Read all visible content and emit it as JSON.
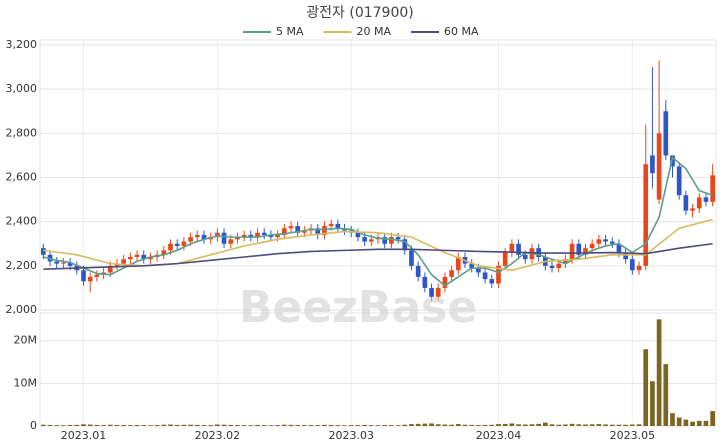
{
  "chart_data": [
    {
      "type": "candlestick",
      "title": "광전자 (017900)",
      "watermark": "BeezBase",
      "categories": [
        null,
        null,
        null,
        null,
        null,
        null,
        "2023.01",
        null,
        null,
        null,
        null,
        null,
        null,
        null,
        null,
        null,
        null,
        null,
        null,
        null,
        null,
        null,
        null,
        null,
        null,
        null,
        "2023.02",
        null,
        null,
        null,
        null,
        null,
        null,
        null,
        null,
        null,
        null,
        null,
        null,
        null,
        null,
        null,
        null,
        null,
        null,
        null,
        "2023.03",
        null,
        null,
        null,
        null,
        null,
        null,
        null,
        null,
        null,
        null,
        null,
        null,
        null,
        null,
        null,
        null,
        null,
        null,
        null,
        null,
        null,
        "2023.04",
        null,
        null,
        null,
        null,
        null,
        null,
        null,
        null,
        null,
        null,
        null,
        null,
        null,
        null,
        null,
        null,
        null,
        null,
        null,
        "2023.05",
        null,
        null,
        null,
        null,
        null,
        null,
        null,
        null,
        null,
        null,
        null,
        null
      ],
      "open": [
        2280,
        2250,
        2220,
        2210,
        2215,
        2200,
        2180,
        2130,
        2150,
        2160,
        2170,
        2200,
        2210,
        2230,
        2240,
        2250,
        2230,
        2240,
        2250,
        2270,
        2300,
        2290,
        2310,
        2330,
        2340,
        2320,
        2330,
        2350,
        2300,
        2320,
        2330,
        2340,
        2330,
        2350,
        2340,
        2330,
        2340,
        2370,
        2380,
        2350,
        2360,
        2370,
        2340,
        2380,
        2390,
        2370,
        2360,
        2350,
        2330,
        2310,
        2320,
        2330,
        2300,
        2330,
        2320,
        2270,
        2200,
        2150,
        2100,
        2060,
        2100,
        2150,
        2180,
        2240,
        2210,
        2190,
        2170,
        2140,
        2120,
        2200,
        2260,
        2300,
        2250,
        2230,
        2280,
        2240,
        2200,
        2190,
        2210,
        2230,
        2300,
        2250,
        2280,
        2300,
        2320,
        2310,
        2300,
        2260,
        2230,
        2180,
        2200,
        2700,
        2500,
        2900,
        2700,
        2650,
        2520,
        2450,
        2460,
        2510,
        2490
      ],
      "high": [
        2300,
        2270,
        2240,
        2235,
        2235,
        2220,
        2200,
        2170,
        2180,
        2190,
        2220,
        2230,
        2250,
        2260,
        2270,
        2270,
        2260,
        2270,
        2290,
        2320,
        2320,
        2330,
        2350,
        2360,
        2360,
        2350,
        2370,
        2370,
        2340,
        2350,
        2360,
        2360,
        2370,
        2370,
        2360,
        2360,
        2390,
        2400,
        2400,
        2380,
        2390,
        2390,
        2400,
        2410,
        2410,
        2390,
        2380,
        2370,
        2350,
        2340,
        2350,
        2350,
        2350,
        2350,
        2340,
        2290,
        2220,
        2170,
        2120,
        2120,
        2170,
        2200,
        2260,
        2260,
        2230,
        2210,
        2190,
        2160,
        2220,
        2280,
        2320,
        2320,
        2270,
        2300,
        2300,
        2260,
        2220,
        2230,
        2250,
        2320,
        2320,
        2300,
        2320,
        2340,
        2340,
        2330,
        2320,
        2280,
        2250,
        2220,
        2840,
        3100,
        3130,
        2950,
        2700,
        2670,
        2540,
        2480,
        2530,
        2530,
        2660
      ],
      "low": [
        2230,
        2200,
        2190,
        2190,
        2180,
        2160,
        2110,
        2080,
        2130,
        2140,
        2150,
        2180,
        2190,
        2210,
        2220,
        2210,
        2210,
        2220,
        2230,
        2250,
        2270,
        2270,
        2290,
        2310,
        2300,
        2300,
        2310,
        2280,
        2280,
        2300,
        2310,
        2310,
        2310,
        2320,
        2310,
        2310,
        2320,
        2350,
        2330,
        2330,
        2340,
        2320,
        2320,
        2360,
        2350,
        2340,
        2330,
        2310,
        2290,
        2290,
        2300,
        2280,
        2280,
        2300,
        2250,
        2180,
        2130,
        2080,
        2040,
        2040,
        2080,
        2130,
        2160,
        2190,
        2170,
        2150,
        2120,
        2100,
        2100,
        2180,
        2240,
        2230,
        2210,
        2210,
        2220,
        2180,
        2170,
        2170,
        2190,
        2210,
        2230,
        2230,
        2260,
        2280,
        2290,
        2280,
        2240,
        2210,
        2160,
        2160,
        2180,
        2550,
        2480,
        2680,
        2600,
        2500,
        2430,
        2420,
        2440,
        2470,
        2470
      ],
      "close": [
        2250,
        2220,
        2210,
        2215,
        2200,
        2180,
        2130,
        2150,
        2160,
        2170,
        2200,
        2210,
        2230,
        2240,
        2250,
        2230,
        2240,
        2250,
        2270,
        2300,
        2290,
        2310,
        2330,
        2340,
        2320,
        2330,
        2350,
        2300,
        2320,
        2330,
        2340,
        2330,
        2350,
        2340,
        2330,
        2340,
        2370,
        2380,
        2350,
        2360,
        2370,
        2340,
        2380,
        2390,
        2370,
        2360,
        2350,
        2330,
        2310,
        2320,
        2330,
        2300,
        2330,
        2320,
        2270,
        2200,
        2150,
        2100,
        2060,
        2100,
        2150,
        2180,
        2240,
        2210,
        2190,
        2170,
        2140,
        2120,
        2200,
        2260,
        2300,
        2250,
        2230,
        2280,
        2240,
        2200,
        2190,
        2210,
        2230,
        2300,
        2250,
        2280,
        2300,
        2320,
        2310,
        2300,
        2260,
        2230,
        2180,
        2200,
        2660,
        2620,
        2800,
        2700,
        2650,
        2520,
        2450,
        2460,
        2510,
        2490,
        2610
      ],
      "up_color": "#e8471c",
      "down_color": "#2f56c9",
      "ylim": [
        2000,
        3200
      ],
      "yticks": [
        {
          "value": 2000,
          "label": "2,000"
        },
        {
          "value": 2200,
          "label": "2,200"
        },
        {
          "value": 2400,
          "label": "2,400"
        },
        {
          "value": 2600,
          "label": "2,600"
        },
        {
          "value": 2800,
          "label": "2,800"
        },
        {
          "value": 3000,
          "label": "3,000"
        },
        {
          "value": 3200,
          "label": "3,200"
        }
      ],
      "grid": true,
      "series": [
        {
          "name": "5 MA",
          "color": "#5a9e8a",
          "x": [
            0,
            2,
            4,
            6,
            8,
            10,
            12,
            14,
            16,
            18,
            20,
            22,
            24,
            26,
            28,
            30,
            32,
            34,
            36,
            38,
            40,
            42,
            44,
            46,
            48,
            50,
            52,
            54,
            56,
            58,
            60,
            62,
            64,
            66,
            68,
            70,
            72,
            74,
            76,
            78,
            80,
            82,
            84,
            86,
            88,
            90,
            92,
            94,
            96,
            98,
            100
          ],
          "values": [
            2240,
            2225,
            2215,
            2190,
            2165,
            2160,
            2190,
            2220,
            2240,
            2250,
            2270,
            2300,
            2320,
            2335,
            2330,
            2330,
            2330,
            2340,
            2345,
            2355,
            2365,
            2365,
            2370,
            2365,
            2340,
            2325,
            2320,
            2310,
            2250,
            2160,
            2110,
            2150,
            2190,
            2190,
            2170,
            2210,
            2260,
            2250,
            2230,
            2210,
            2240,
            2270,
            2290,
            2300,
            2260,
            2300,
            2420,
            2690,
            2640,
            2540,
            2520
          ]
        },
        {
          "name": "20 MA",
          "color": "#d6bb62",
          "x": [
            0,
            5,
            10,
            15,
            20,
            25,
            30,
            35,
            40,
            45,
            50,
            55,
            60,
            65,
            70,
            75,
            80,
            85,
            90,
            95,
            100
          ],
          "values": [
            2270,
            2250,
            2210,
            2200,
            2210,
            2250,
            2290,
            2320,
            2340,
            2355,
            2350,
            2330,
            2260,
            2200,
            2180,
            2220,
            2230,
            2250,
            2250,
            2370,
            2410
          ]
        },
        {
          "name": "60 MA",
          "color": "#4b4d7c",
          "x": [
            0,
            5,
            10,
            15,
            20,
            25,
            30,
            35,
            40,
            45,
            50,
            55,
            60,
            65,
            70,
            75,
            80,
            85,
            90,
            95,
            100
          ],
          "values": [
            2185,
            2190,
            2195,
            2200,
            2210,
            2225,
            2240,
            2255,
            2265,
            2270,
            2275,
            2275,
            2270,
            2265,
            2262,
            2258,
            2258,
            2260,
            2255,
            2280,
            2300
          ]
        }
      ]
    },
    {
      "type": "bar",
      "color": "#7b6522",
      "values": [
        300000,
        250000,
        200000,
        180000,
        220000,
        260000,
        400000,
        350000,
        250000,
        200000,
        300000,
        250000,
        220000,
        200000,
        240000,
        200000,
        180000,
        220000,
        300000,
        350000,
        250000,
        280000,
        300000,
        260000,
        220000,
        200000,
        350000,
        300000,
        250000,
        220000,
        200000,
        180000,
        240000,
        200000,
        180000,
        200000,
        300000,
        280000,
        220000,
        200000,
        220000,
        200000,
        260000,
        240000,
        200000,
        180000,
        200000,
        220000,
        250000,
        200000,
        180000,
        240000,
        200000,
        180000,
        300000,
        450000,
        500000,
        550000,
        600000,
        400000,
        350000,
        300000,
        450000,
        300000,
        250000,
        220000,
        250000,
        280000,
        450000,
        500000,
        600000,
        400000,
        350000,
        400000,
        500000,
        800000,
        400000,
        300000,
        350000,
        500000,
        400000,
        350000,
        400000,
        450000,
        350000,
        300000,
        300000,
        280000,
        350000,
        400000,
        18000000,
        10500000,
        25000000,
        14500000,
        3000000,
        2000000,
        1500000,
        1000000,
        1200000,
        1200000,
        3500000
      ],
      "ylim": [
        0,
        26500000
      ],
      "yticks": [
        0,
        {
          "value": 10000000,
          "label": "10M"
        },
        {
          "value": 20000000,
          "label": "20M"
        }
      ]
    }
  ]
}
